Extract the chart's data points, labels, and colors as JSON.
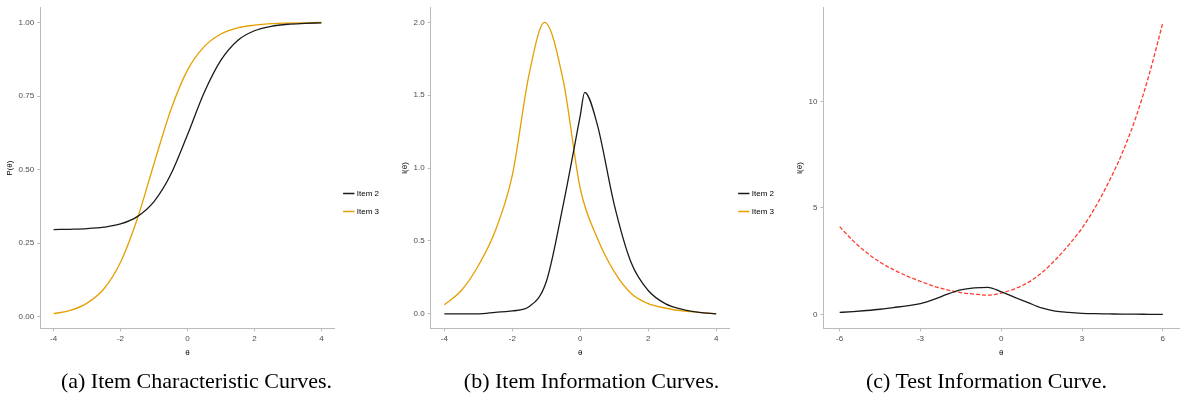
{
  "chart_data": [
    {
      "type": "line",
      "title": "(a) Item Characteristic Curves.",
      "xlabel": "θ",
      "ylabel": "P(θ)",
      "x": [
        -4,
        -3.5,
        -3,
        -2.5,
        -2,
        -1.5,
        -1,
        -0.5,
        0,
        0.5,
        1,
        1.5,
        2,
        2.5,
        3,
        3.5,
        4
      ],
      "series": [
        {
          "name": "Item 2",
          "color": "#1a1a1a",
          "values": [
            0.296,
            0.297,
            0.299,
            0.304,
            0.315,
            0.34,
            0.391,
            0.483,
            0.618,
            0.762,
            0.872,
            0.939,
            0.972,
            0.987,
            0.994,
            0.997,
            0.999
          ]
        },
        {
          "name": "Item 3",
          "color": "#e69f00",
          "values": [
            0.01,
            0.021,
            0.046,
            0.094,
            0.185,
            0.332,
            0.52,
            0.702,
            0.838,
            0.918,
            0.961,
            0.982,
            0.991,
            0.996,
            0.998,
            0.999,
            1.0
          ]
        }
      ],
      "xlim": [
        -4.4,
        4.4
      ],
      "ylim": [
        -0.04,
        1.05
      ],
      "xticks": [
        -4,
        -2,
        0,
        2,
        4
      ],
      "yticks": [
        {
          "value": 0,
          "label": "0.00"
        },
        {
          "value": 0.25,
          "label": "0.25"
        },
        {
          "value": 0.5,
          "label": "0.50"
        },
        {
          "value": 0.75,
          "label": "0.75"
        },
        {
          "value": 1,
          "label": "1.00"
        }
      ],
      "grid": false,
      "legend": "right",
      "marker": "none",
      "line_style": "solid"
    },
    {
      "type": "line",
      "title": "(b) Item Information Curves.",
      "xlabel": "θ",
      "ylabel": "I(θ)",
      "series": [
        {
          "name": "Item 2",
          "color": "#1a1a1a",
          "x": [
            -4,
            -3.5,
            -3,
            -2.5,
            -2,
            -1.5,
            -1,
            -0.5,
            0,
            0.13,
            0.5,
            1,
            1.5,
            2,
            2.5,
            3,
            3.5,
            4
          ],
          "values": [
            0,
            0,
            0,
            0.01,
            0.02,
            0.05,
            0.22,
            0.75,
            1.36,
            1.52,
            1.3,
            0.75,
            0.35,
            0.16,
            0.07,
            0.03,
            0.01,
            0
          ]
        },
        {
          "name": "Item 3",
          "color": "#e69f00",
          "x": [
            -4,
            -3.5,
            -3,
            -2.5,
            -2,
            -1.5,
            -1.05,
            -0.5,
            0,
            0.5,
            1,
            1.5,
            2,
            2.5,
            3,
            3.5,
            4
          ],
          "values": [
            0.062,
            0.16,
            0.33,
            0.57,
            0.95,
            1.65,
            2.0,
            1.6,
            0.86,
            0.52,
            0.29,
            0.14,
            0.07,
            0.04,
            0.02,
            0.01,
            0
          ]
        }
      ],
      "xlim": [
        -4.4,
        4.4
      ],
      "ylim": [
        -0.1,
        2.1
      ],
      "xticks": [
        -4,
        -2,
        0,
        2,
        4
      ],
      "yticks": [
        {
          "value": 0,
          "label": "0.0"
        },
        {
          "value": 0.5,
          "label": "0.5"
        },
        {
          "value": 1,
          "label": "1.0"
        },
        {
          "value": 1.5,
          "label": "1.5"
        },
        {
          "value": 2,
          "label": "2.0"
        }
      ],
      "grid": false,
      "legend": "right",
      "marker": "none",
      "line_style": "solid"
    },
    {
      "type": "line",
      "title": "(c) Test Information Curve.",
      "xlabel": "θ",
      "ylabel": "I(θ)",
      "x": [
        -6,
        -5.5,
        -5,
        -4.5,
        -4,
        -3.5,
        -3,
        -2.5,
        -2,
        -1.5,
        -1,
        -0.5,
        0,
        0.5,
        1,
        1.5,
        2,
        2.5,
        3,
        3.5,
        4,
        4.5,
        5,
        5.5,
        6
      ],
      "series": [
        {
          "color": "#1a1a1a",
          "line_style": "solid",
          "values": [
            0.09,
            0.13,
            0.18,
            0.24,
            0.32,
            0.4,
            0.5,
            0.7,
            0.95,
            1.15,
            1.24,
            1.27,
            1.06,
            0.8,
            0.55,
            0.3,
            0.15,
            0.09,
            0.05,
            0.03,
            0.02,
            0.01,
            0.01,
            0,
            0
          ]
        },
        {
          "color": "#ff3b2f",
          "line_style": "dashed",
          "values": [
            4.12,
            3.45,
            2.9,
            2.45,
            2.1,
            1.8,
            1.55,
            1.32,
            1.15,
            1.02,
            0.95,
            0.9,
            1.0,
            1.2,
            1.5,
            1.95,
            2.55,
            3.25,
            4.05,
            5.05,
            6.24,
            7.6,
            9.26,
            11.3,
            13.7
          ]
        }
      ],
      "xlim": [
        -6.6,
        6.6
      ],
      "ylim": [
        -0.66,
        14.4
      ],
      "xticks": [
        -6,
        -3,
        0,
        3,
        6
      ],
      "yticks": [
        0,
        5,
        10
      ],
      "grid": false,
      "legend": false,
      "marker": "none"
    }
  ]
}
